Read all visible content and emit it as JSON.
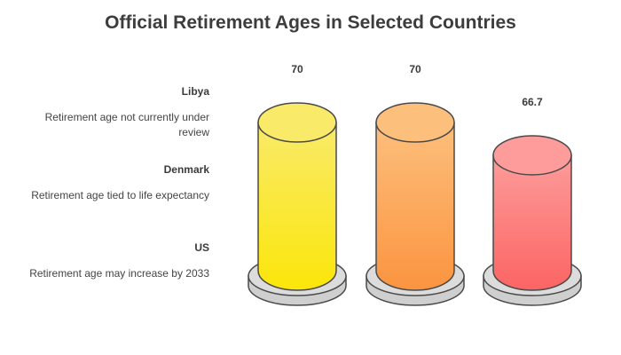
{
  "chart_data": {
    "type": "bar",
    "title": "Official Retirement Ages in Selected Countries",
    "categories": [
      "Libya",
      "Denmark",
      "US"
    ],
    "values": [
      70,
      70,
      66.7
    ],
    "descriptions": [
      "Retirement age not currently under review",
      "Retirement age tied to life expectancy",
      "Retirement age may increase by 2033"
    ],
    "colors": [
      {
        "top": "#f9ea6a",
        "bottom": "#fbe60a",
        "stroke": "#4a4a4a"
      },
      {
        "top": "#fdbf7c",
        "bottom": "#fb9440",
        "stroke": "#4a4a4a"
      },
      {
        "top": "#fd9c9a",
        "bottom": "#fb6564",
        "stroke": "#4a4a4a"
      }
    ],
    "base_color": "#dcdcdc",
    "ylim": [
      60,
      70
    ]
  }
}
